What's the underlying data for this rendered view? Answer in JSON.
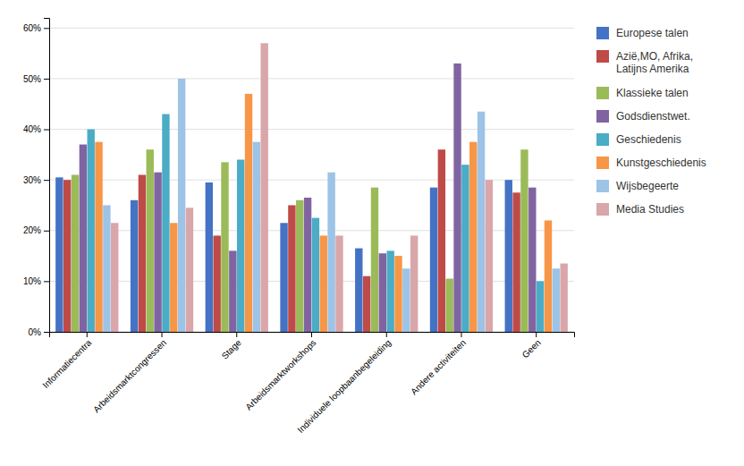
{
  "chart_data": {
    "type": "bar",
    "categories": [
      "Informatiecentra",
      "Arbeidsmarktcongressen",
      "Stage",
      "Arbeidsmarktworkshops",
      "Individuele loopbaanbegeleiding",
      "Andere activiteiten",
      "Geen"
    ],
    "series": [
      {
        "name": "Europese talen",
        "color": "#4472C4",
        "values": [
          0.305,
          0.26,
          0.295,
          0.215,
          0.165,
          0.285,
          0.3
        ]
      },
      {
        "name": "Azië,MO, Afrika,\nLatijns Amerika",
        "color": "#BE4B48",
        "values": [
          0.3,
          0.31,
          0.19,
          0.25,
          0.11,
          0.36,
          0.275
        ]
      },
      {
        "name": "Klassieke talen",
        "color": "#9BBB59",
        "values": [
          0.31,
          0.36,
          0.335,
          0.26,
          0.285,
          0.105,
          0.36
        ]
      },
      {
        "name": "Godsdienstwet.",
        "color": "#8064A2",
        "values": [
          0.37,
          0.315,
          0.16,
          0.265,
          0.155,
          0.53,
          0.285
        ]
      },
      {
        "name": "Geschiedenis",
        "color": "#4BACC6",
        "values": [
          0.4,
          0.43,
          0.34,
          0.225,
          0.16,
          0.33,
          0.1
        ]
      },
      {
        "name": "Kunstgeschiedenis",
        "color": "#F79646",
        "values": [
          0.375,
          0.215,
          0.47,
          0.19,
          0.15,
          0.375,
          0.22
        ]
      },
      {
        "name": "Wijsbegeerte",
        "color": "#9DC3E6",
        "values": [
          0.25,
          0.5,
          0.375,
          0.315,
          0.125,
          0.435,
          0.125
        ]
      },
      {
        "name": "Media Studies",
        "color": "#D9A6A9",
        "values": [
          0.215,
          0.245,
          0.57,
          0.19,
          0.19,
          0.3,
          0.135
        ]
      }
    ],
    "ylim": [
      0,
      0.62
    ],
    "yticks": [
      {
        "value": 0.0,
        "label": "0%"
      },
      {
        "value": 0.1,
        "label": "10%"
      },
      {
        "value": 0.2,
        "label": "20%"
      },
      {
        "value": 0.3,
        "label": "30%"
      },
      {
        "value": 0.4,
        "label": "40%"
      },
      {
        "value": 0.5,
        "label": "50%"
      },
      {
        "value": 0.6,
        "label": "60%"
      }
    ],
    "grid": true,
    "legend": "right"
  }
}
